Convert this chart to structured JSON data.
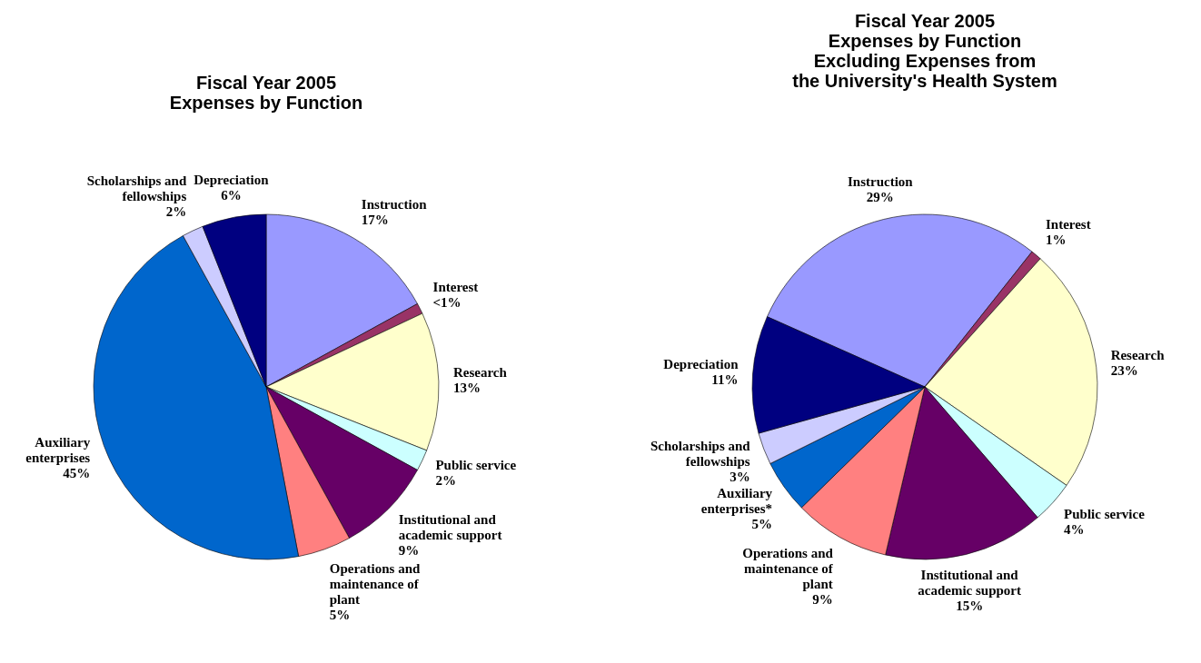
{
  "chart_data": [
    {
      "type": "pie",
      "title": "Fiscal Year 2005\nExpenses by Function",
      "categories": [
        "Instruction",
        "Interest",
        "Research",
        "Public service",
        "Institutional and academic support",
        "Operations and maintenance of plant",
        "Auxiliary enterprises",
        "Scholarships and fellowships",
        "Depreciation"
      ],
      "values": [
        17,
        1,
        13,
        2,
        9,
        5,
        45,
        2,
        6
      ],
      "value_labels": [
        "17%",
        "<1%",
        "13%",
        "2%",
        "9%",
        "5%",
        "45%",
        "2%",
        "6%"
      ],
      "colors": [
        "#9999ff",
        "#993366",
        "#ffffcc",
        "#ccffff",
        "#660066",
        "#ff8080",
        "#0066cc",
        "#ccccff",
        "#000080"
      ]
    },
    {
      "type": "pie",
      "title": "Fiscal Year 2005\nExpenses by Function\nExcluding Expenses from\nthe University's Health System",
      "categories": [
        "Instruction",
        "Interest",
        "Research",
        "Public service",
        "Institutional and academic support",
        "Operations and maintenance of plant",
        "Auxiliary enterprises*",
        "Scholarships and fellowships",
        "Depreciation"
      ],
      "values": [
        29,
        1,
        23,
        4,
        15,
        9,
        5,
        3,
        11
      ],
      "value_labels": [
        "29%",
        "1%",
        "23%",
        "4%",
        "15%",
        "9%",
        "5%",
        "3%",
        "11%"
      ],
      "colors": [
        "#9999ff",
        "#993366",
        "#ffffcc",
        "#ccffff",
        "#660066",
        "#ff8080",
        "#0066cc",
        "#ccccff",
        "#000080"
      ]
    }
  ]
}
